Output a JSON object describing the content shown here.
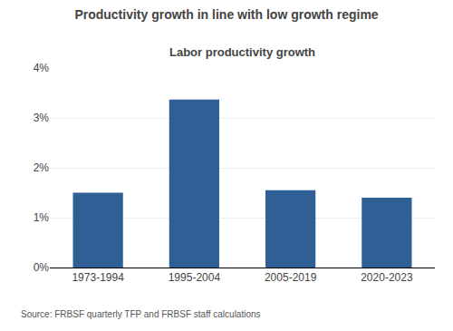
{
  "chart_data": {
    "type": "bar",
    "title": "Productivity growth in line with low growth regime",
    "subtitle": "Labor productivity growth",
    "categories": [
      "1973-1994",
      "1995-2004",
      "2005-2019",
      "2020-2023"
    ],
    "values": [
      0.015,
      0.0337,
      0.0155,
      0.014
    ],
    "color": "#2E6096",
    "ylim": [
      0,
      0.04
    ],
    "yticks": [
      {
        "value": 0.0,
        "label": "0%"
      },
      {
        "value": 0.01,
        "label": "1%"
      },
      {
        "value": 0.02,
        "label": "2%"
      },
      {
        "value": 0.03,
        "label": "3%"
      },
      {
        "value": 0.04,
        "label": "4%"
      }
    ],
    "grid": true,
    "annotations": [
      "Source: FRBSF quarterly TFP and FRBSF staff calculations"
    ]
  }
}
